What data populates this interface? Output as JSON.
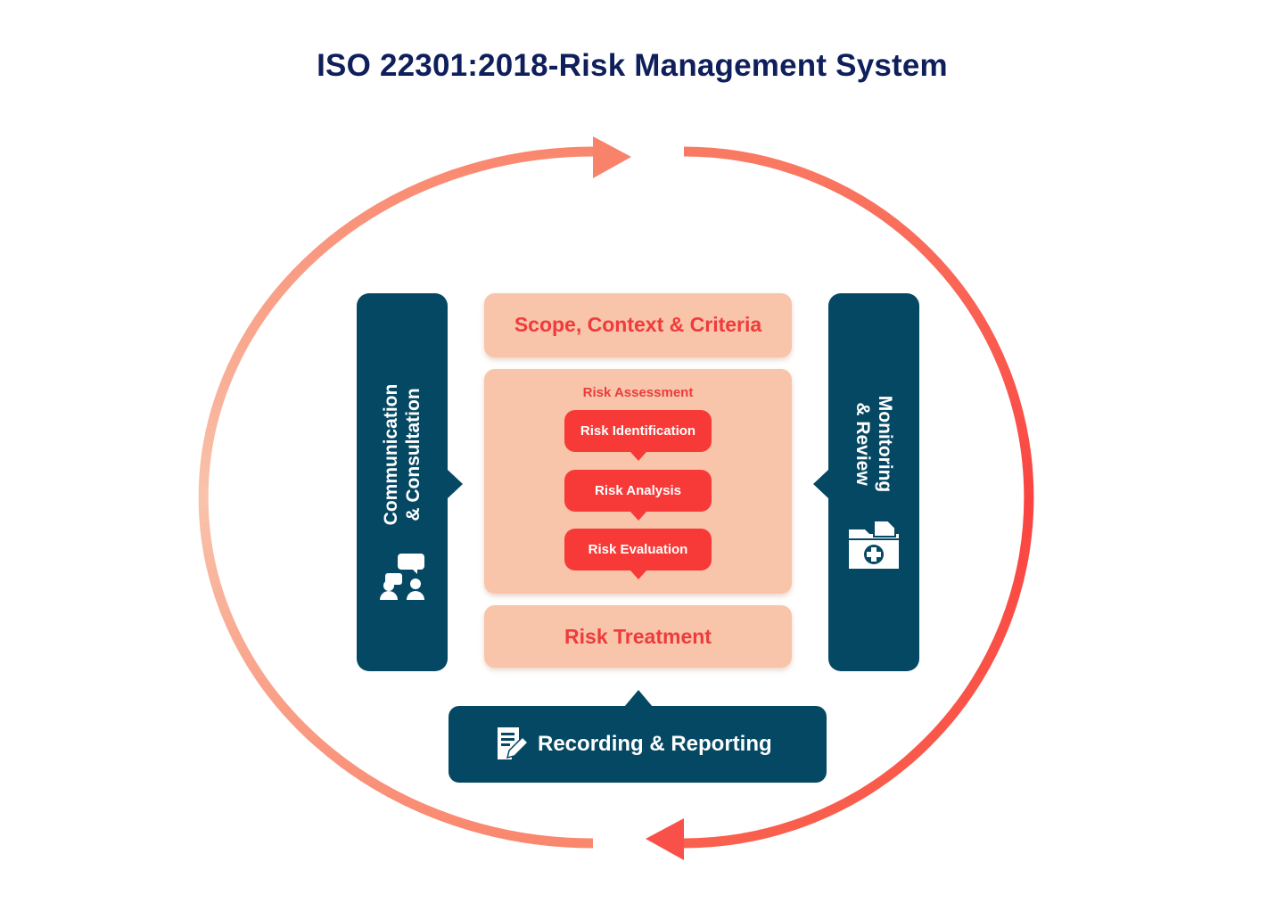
{
  "title": "ISO 22301:2018-Risk Management System",
  "colors": {
    "navy": "#054863",
    "peach": "#f8c4aa",
    "red": "#f73a37",
    "title": "#0f1f5c",
    "arc_light": "#f9c1a9",
    "arc_dark": "#f9433f"
  },
  "communication": {
    "label_line1": "Communication",
    "label_line2": "& Consultation",
    "icon": "people-chat-icon"
  },
  "monitoring": {
    "label_line1": "Monitoring",
    "label_line2": "& Review",
    "icon": "medical-folder-icon"
  },
  "scope": {
    "label": "Scope, Context & Criteria"
  },
  "assessment": {
    "title": "Risk Assessment",
    "steps": [
      {
        "label": "Risk Identification"
      },
      {
        "label": "Risk Analysis"
      },
      {
        "label": "Risk Evaluation"
      }
    ]
  },
  "treatment": {
    "label": "Risk Treatment"
  },
  "recording": {
    "label": "Recording & Reporting",
    "icon": "document-edit-icon"
  }
}
